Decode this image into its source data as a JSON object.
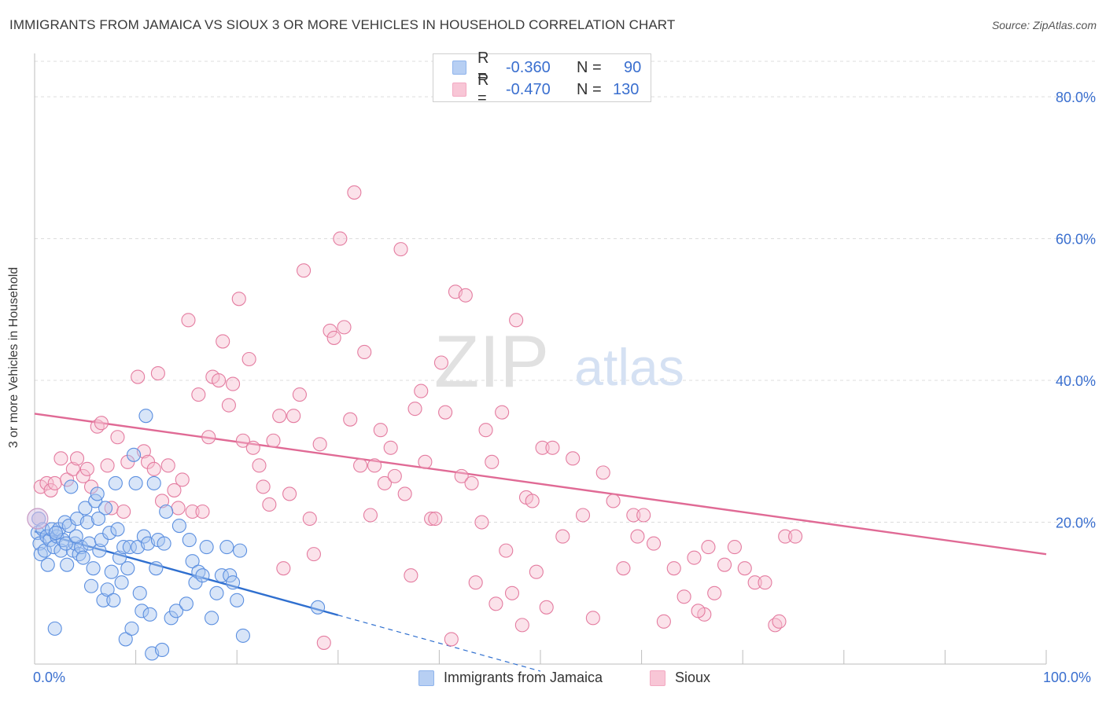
{
  "title": "IMMIGRANTS FROM JAMAICA VS SIOUX 3 OR MORE VEHICLES IN HOUSEHOLD CORRELATION CHART",
  "source": "Source: ZipAtlas.com",
  "watermark": {
    "zip": "ZIP",
    "atlas": "atlas"
  },
  "legend_top": {
    "rows": [
      {
        "r_label": "R =",
        "r_value": "-0.360",
        "n_label": "N =",
        "n_value": "90",
        "color": "#8fb4ec"
      },
      {
        "r_label": "R =",
        "r_value": "-0.470",
        "n_label": "N =",
        "n_value": "130",
        "color": "#f3a9c2"
      }
    ]
  },
  "bottom_legend": [
    {
      "label": "Immigrants from Jamaica",
      "color": "#8fb4ec"
    },
    {
      "label": "Sioux",
      "color": "#f3a9c2"
    }
  ],
  "x_tick_labels": {
    "left": "0.0%",
    "right": "100.0%"
  },
  "chart_data": {
    "type": "scatter",
    "title": "IMMIGRANTS FROM JAMAICA VS SIOUX 3 OR MORE VEHICLES IN HOUSEHOLD CORRELATION CHART",
    "xlabel": "",
    "ylabel": "3 or more Vehicles in Household",
    "xlim": [
      0,
      100
    ],
    "ylim": [
      0,
      85
    ],
    "y_ticks": [
      {
        "value": 20,
        "label": "20.0%"
      },
      {
        "value": 40,
        "label": "40.0%"
      },
      {
        "value": 60,
        "label": "60.0%"
      },
      {
        "value": 80,
        "label": "80.0%"
      }
    ],
    "x_ticks": [
      0,
      10,
      20,
      30,
      40,
      50,
      60,
      70,
      80,
      90,
      100
    ],
    "grid": true,
    "legend": "top-center",
    "series": [
      {
        "name": "Immigrants from Jamaica",
        "color": "#5b8fe0",
        "fill": "#a9c6f0",
        "points": [
          [
            0.3,
            18.5
          ],
          [
            0.4,
            20.5
          ],
          [
            0.5,
            17.0
          ],
          [
            0.6,
            15.5
          ],
          [
            0.8,
            19.0
          ],
          [
            1.0,
            16.0
          ],
          [
            1.2,
            18.0
          ],
          [
            1.3,
            14.0
          ],
          [
            1.5,
            17.5
          ],
          [
            1.7,
            19.0
          ],
          [
            1.9,
            16.5
          ],
          [
            2.0,
            5.0
          ],
          [
            2.2,
            18.0
          ],
          [
            2.4,
            19.0
          ],
          [
            2.6,
            16.0
          ],
          [
            2.8,
            17.5
          ],
          [
            3.0,
            20.0
          ],
          [
            3.2,
            14.0
          ],
          [
            3.4,
            19.5
          ],
          [
            3.6,
            25.0
          ],
          [
            3.8,
            16.0
          ],
          [
            4.0,
            17.0
          ],
          [
            4.2,
            20.5
          ],
          [
            4.4,
            15.5
          ],
          [
            4.6,
            16.5
          ],
          [
            4.8,
            15.0
          ],
          [
            5.0,
            22.0
          ],
          [
            5.2,
            20.0
          ],
          [
            5.4,
            17.0
          ],
          [
            5.6,
            11.0
          ],
          [
            5.8,
            13.5
          ],
          [
            6.0,
            23.0
          ],
          [
            6.2,
            24.0
          ],
          [
            6.4,
            16.0
          ],
          [
            6.6,
            17.5
          ],
          [
            6.8,
            9.0
          ],
          [
            7.0,
            22.0
          ],
          [
            7.2,
            10.5
          ],
          [
            7.4,
            18.5
          ],
          [
            7.6,
            13.0
          ],
          [
            7.8,
            9.0
          ],
          [
            8.0,
            25.5
          ],
          [
            8.2,
            19.0
          ],
          [
            8.4,
            15.0
          ],
          [
            8.6,
            11.5
          ],
          [
            8.8,
            16.5
          ],
          [
            9.0,
            3.5
          ],
          [
            9.2,
            13.5
          ],
          [
            9.4,
            16.5
          ],
          [
            9.6,
            5.0
          ],
          [
            9.8,
            29.5
          ],
          [
            10.0,
            25.5
          ],
          [
            10.2,
            16.5
          ],
          [
            10.4,
            10.0
          ],
          [
            10.6,
            7.5
          ],
          [
            10.8,
            18.0
          ],
          [
            11.0,
            35.0
          ],
          [
            11.2,
            17.0
          ],
          [
            11.4,
            7.0
          ],
          [
            11.6,
            1.5
          ],
          [
            11.8,
            25.5
          ],
          [
            12.0,
            13.5
          ],
          [
            12.2,
            17.5
          ],
          [
            12.6,
            2.0
          ],
          [
            12.8,
            17.0
          ],
          [
            13.0,
            21.5
          ],
          [
            13.5,
            6.5
          ],
          [
            14.0,
            7.5
          ],
          [
            14.3,
            19.5
          ],
          [
            15.0,
            8.5
          ],
          [
            15.3,
            17.5
          ],
          [
            15.6,
            14.5
          ],
          [
            15.9,
            11.5
          ],
          [
            16.2,
            13.0
          ],
          [
            16.6,
            12.5
          ],
          [
            17.0,
            16.5
          ],
          [
            17.5,
            6.5
          ],
          [
            18.0,
            10.0
          ],
          [
            18.5,
            12.5
          ],
          [
            19.0,
            16.5
          ],
          [
            19.3,
            12.5
          ],
          [
            19.6,
            11.5
          ],
          [
            20.0,
            9.0
          ],
          [
            20.3,
            16.0
          ],
          [
            20.6,
            4.0
          ],
          [
            28.0,
            8.0
          ],
          [
            2.1,
            18.5
          ],
          [
            3.1,
            17.0
          ],
          [
            4.1,
            18.0
          ],
          [
            6.3,
            20.5
          ]
        ],
        "trendline": {
          "x": [
            0,
            30
          ],
          "y": [
            18.7,
            6.9
          ]
        },
        "trendline_extension": {
          "x": [
            30,
            50
          ],
          "y": [
            6.9,
            -1.0
          ]
        }
      },
      {
        "name": "Sioux",
        "color": "#e47ca0",
        "fill": "#f6bfd1",
        "points": [
          [
            0.4,
            20.5
          ],
          [
            0.6,
            25.0
          ],
          [
            1.2,
            25.5
          ],
          [
            1.6,
            24.5
          ],
          [
            2.0,
            25.5
          ],
          [
            2.6,
            29.0
          ],
          [
            3.2,
            26.0
          ],
          [
            3.8,
            27.5
          ],
          [
            4.2,
            29.0
          ],
          [
            4.8,
            26.5
          ],
          [
            5.2,
            27.5
          ],
          [
            5.6,
            25.0
          ],
          [
            6.2,
            33.5
          ],
          [
            6.6,
            34.0
          ],
          [
            7.2,
            28.0
          ],
          [
            7.6,
            22.0
          ],
          [
            8.2,
            32.0
          ],
          [
            8.8,
            21.5
          ],
          [
            9.2,
            28.5
          ],
          [
            10.2,
            40.5
          ],
          [
            10.8,
            30.0
          ],
          [
            11.2,
            28.5
          ],
          [
            11.8,
            27.5
          ],
          [
            12.2,
            41.0
          ],
          [
            12.6,
            23.0
          ],
          [
            13.2,
            28.0
          ],
          [
            13.8,
            24.5
          ],
          [
            14.2,
            22.0
          ],
          [
            14.6,
            26.0
          ],
          [
            15.2,
            48.5
          ],
          [
            15.6,
            21.5
          ],
          [
            16.2,
            38.0
          ],
          [
            16.6,
            21.5
          ],
          [
            17.2,
            32.0
          ],
          [
            17.6,
            40.5
          ],
          [
            18.2,
            40.0
          ],
          [
            18.6,
            45.5
          ],
          [
            19.2,
            36.5
          ],
          [
            19.6,
            39.5
          ],
          [
            20.2,
            51.5
          ],
          [
            20.6,
            31.5
          ],
          [
            21.2,
            43.0
          ],
          [
            21.6,
            30.5
          ],
          [
            22.2,
            28.0
          ],
          [
            22.6,
            25.0
          ],
          [
            23.2,
            22.5
          ],
          [
            23.6,
            31.5
          ],
          [
            24.2,
            35.0
          ],
          [
            24.6,
            13.5
          ],
          [
            25.2,
            24.0
          ],
          [
            25.6,
            35.0
          ],
          [
            26.2,
            38.0
          ],
          [
            26.6,
            55.5
          ],
          [
            27.2,
            20.5
          ],
          [
            27.6,
            15.5
          ],
          [
            28.2,
            31.0
          ],
          [
            28.6,
            3.0
          ],
          [
            29.2,
            47.0
          ],
          [
            29.6,
            46.0
          ],
          [
            30.2,
            60.0
          ],
          [
            30.6,
            47.5
          ],
          [
            31.2,
            34.5
          ],
          [
            31.6,
            66.5
          ],
          [
            32.2,
            28.0
          ],
          [
            32.6,
            44.0
          ],
          [
            33.2,
            21.0
          ],
          [
            33.6,
            28.0
          ],
          [
            34.2,
            33.0
          ],
          [
            34.6,
            25.5
          ],
          [
            35.2,
            30.5
          ],
          [
            35.6,
            26.5
          ],
          [
            36.2,
            58.5
          ],
          [
            36.6,
            24.0
          ],
          [
            37.2,
            12.5
          ],
          [
            37.6,
            36.0
          ],
          [
            38.2,
            38.5
          ],
          [
            38.6,
            28.5
          ],
          [
            39.2,
            20.5
          ],
          [
            39.6,
            20.5
          ],
          [
            40.2,
            42.5
          ],
          [
            40.6,
            35.5
          ],
          [
            41.2,
            3.5
          ],
          [
            41.6,
            52.5
          ],
          [
            42.2,
            26.5
          ],
          [
            42.6,
            52.0
          ],
          [
            43.2,
            25.5
          ],
          [
            43.6,
            11.5
          ],
          [
            44.2,
            20.0
          ],
          [
            44.6,
            33.0
          ],
          [
            45.2,
            28.5
          ],
          [
            45.6,
            8.5
          ],
          [
            46.2,
            35.5
          ],
          [
            46.6,
            16.0
          ],
          [
            47.2,
            10.0
          ],
          [
            47.6,
            48.5
          ],
          [
            48.2,
            5.5
          ],
          [
            48.6,
            23.5
          ],
          [
            49.2,
            23.0
          ],
          [
            49.6,
            13.0
          ],
          [
            50.2,
            30.5
          ],
          [
            50.6,
            8.0
          ],
          [
            51.2,
            30.5
          ],
          [
            52.2,
            18.0
          ],
          [
            53.2,
            29.0
          ],
          [
            54.2,
            21.0
          ],
          [
            55.2,
            6.5
          ],
          [
            56.2,
            27.0
          ],
          [
            57.2,
            23.0
          ],
          [
            58.2,
            13.5
          ],
          [
            59.2,
            21.0
          ],
          [
            60.2,
            21.0
          ],
          [
            61.2,
            17.0
          ],
          [
            62.2,
            6.0
          ],
          [
            63.2,
            13.5
          ],
          [
            64.2,
            9.5
          ],
          [
            65.2,
            15.0
          ],
          [
            66.2,
            7.0
          ],
          [
            66.6,
            16.5
          ],
          [
            67.2,
            10.0
          ],
          [
            68.2,
            14.0
          ],
          [
            69.2,
            16.5
          ],
          [
            70.2,
            13.5
          ],
          [
            71.2,
            11.5
          ],
          [
            72.2,
            11.5
          ],
          [
            73.2,
            5.5
          ],
          [
            73.6,
            6.0
          ],
          [
            74.2,
            18.0
          ],
          [
            75.2,
            18.0
          ],
          [
            65.6,
            7.5
          ],
          [
            59.6,
            18.0
          ]
        ],
        "trendline": {
          "x": [
            0,
            100
          ],
          "y": [
            35.3,
            15.5
          ]
        }
      }
    ]
  }
}
